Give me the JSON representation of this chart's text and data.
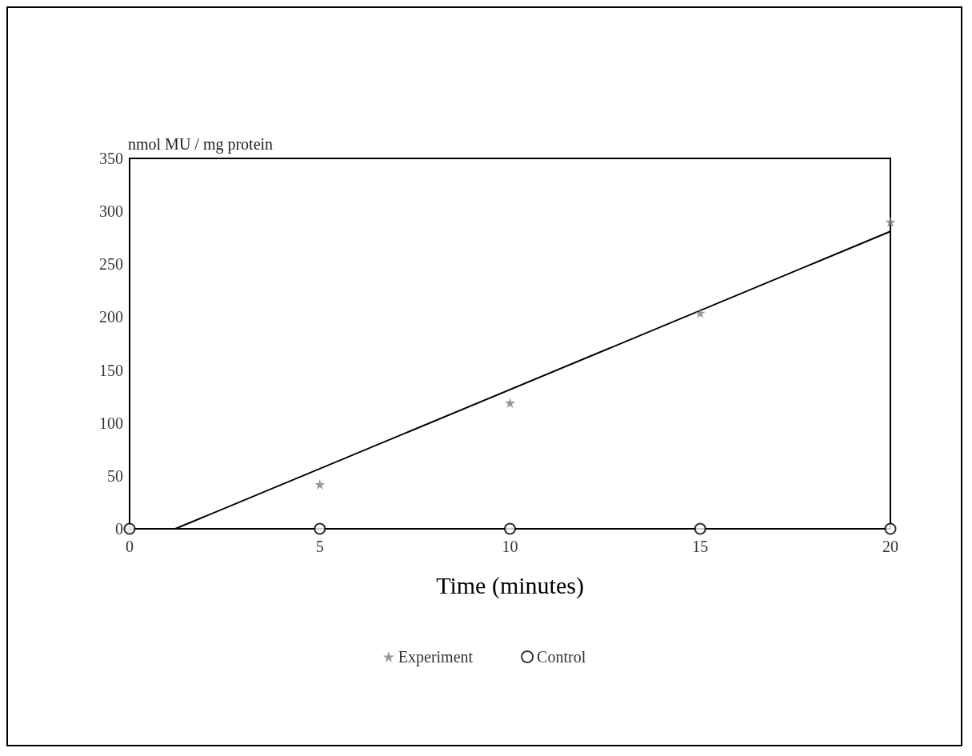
{
  "chart_data": {
    "type": "scatter",
    "xlabel": "Time (minutes)",
    "ylabel": "nmol MU / mg protein",
    "xlim": [
      0,
      20
    ],
    "xticks": [
      0,
      5,
      10,
      15,
      20
    ],
    "ylim": [
      0,
      350
    ],
    "yticks": [
      0,
      50,
      100,
      150,
      200,
      250,
      300,
      350
    ],
    "grid": false,
    "legend": "bottom",
    "series": [
      {
        "name": "Experiment",
        "marker": "star",
        "color": "#808080",
        "x": [
          0,
          5,
          10,
          15,
          20
        ],
        "values": [
          0,
          42,
          119,
          204,
          290
        ]
      },
      {
        "name": "Control",
        "marker": "circle",
        "color": "#000000",
        "x": [
          0,
          5,
          10,
          15,
          20
        ],
        "values": [
          0,
          0,
          0,
          0,
          0
        ]
      },
      {
        "type": "line",
        "marker": "none",
        "line_style": "solid",
        "color": "#000000",
        "x": [
          1.2,
          20
        ],
        "values": [
          0,
          281
        ]
      }
    ]
  }
}
